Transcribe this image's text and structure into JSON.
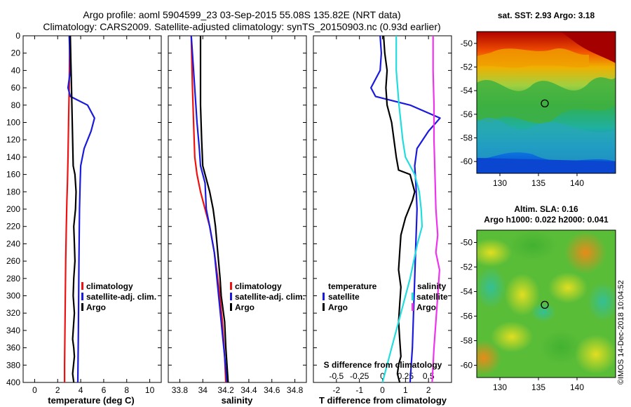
{
  "title_line1": "Argo profile: aoml 5904599_23 03-Sep-2015 55.08S 135.82E (NRT data)",
  "title_line2": "Climatology: CARS2009. Satellite-adjusted climatology: synTS_20150903.nc (0.93d earlier)",
  "stamp": "©IMOS 14-Dec-2018 10:04:52",
  "colors": {
    "red": "#ee1111",
    "blue": "#1a1add",
    "black": "#000000",
    "cyan": "#22dddd",
    "magenta": "#ee33ee"
  },
  "depth_ticks": [
    "0",
    "20",
    "40",
    "60",
    "80",
    "100",
    "120",
    "140",
    "160",
    "180",
    "200",
    "220",
    "240",
    "260",
    "280",
    "300",
    "320",
    "340",
    "360",
    "380",
    "400"
  ],
  "chart_data": [
    {
      "type": "line",
      "name": "temperature-panel",
      "xlabel": "temperature (deg C)",
      "xlim": [
        -1,
        11
      ],
      "ylim": [
        400,
        0
      ],
      "xticks": [
        "0",
        "2",
        "4",
        "6",
        "8",
        "10"
      ],
      "legend": [
        "climatology",
        "satellite-adj. clim.",
        "Argo"
      ],
      "series": [
        {
          "name": "climatology",
          "color": "red",
          "x": [
            3.05,
            3.0,
            2.95,
            2.9,
            2.85,
            2.8,
            2.75,
            2.7,
            2.65,
            2.6,
            2.6
          ],
          "depth": [
            0,
            60,
            100,
            140,
            170,
            190,
            220,
            260,
            320,
            380,
            400
          ]
        },
        {
          "name": "satellite-adj. clim.",
          "color": "blue",
          "x": [
            3.0,
            3.05,
            3.1,
            2.9,
            3.1,
            4.6,
            5.2,
            4.9,
            4.3,
            4.0,
            3.95,
            3.9,
            3.85,
            3.8,
            3.75
          ],
          "depth": [
            0,
            20,
            40,
            60,
            70,
            80,
            95,
            110,
            130,
            150,
            170,
            200,
            260,
            340,
            400
          ]
        },
        {
          "name": "Argo",
          "color": "black",
          "x": [
            3.1,
            3.15,
            3.2,
            3.25,
            3.3,
            3.35,
            3.5,
            3.6,
            3.55,
            3.4,
            3.45,
            3.5,
            3.4,
            3.35,
            3.45,
            3.35,
            3.3,
            3.4,
            3.45,
            3.3,
            3.4
          ],
          "depth": [
            0,
            30,
            60,
            90,
            120,
            150,
            160,
            180,
            200,
            220,
            240,
            260,
            280,
            300,
            320,
            340,
            350,
            360,
            370,
            390,
            400
          ]
        }
      ]
    },
    {
      "type": "line",
      "name": "salinity-panel",
      "xlabel": "salinity",
      "xlim": [
        33.7,
        34.9
      ],
      "ylim": [
        400,
        0
      ],
      "xticks": [
        "33.8",
        "34",
        "34.2",
        "34.4",
        "34.6",
        "34.8"
      ],
      "legend": [
        "climatology",
        "satellite-adj. clim.",
        "Argo"
      ],
      "series": [
        {
          "name": "climatology",
          "color": "red",
          "x": [
            33.9,
            33.91,
            33.92,
            33.93,
            33.95,
            33.98,
            34.02,
            34.06,
            34.1,
            34.14,
            34.17,
            34.19,
            34.2
          ],
          "depth": [
            0,
            60,
            100,
            140,
            160,
            180,
            200,
            220,
            250,
            290,
            330,
            370,
            400
          ]
        },
        {
          "name": "satellite-adj. clim.",
          "color": "blue",
          "x": [
            33.9,
            33.92,
            33.95,
            33.97,
            33.98,
            34.02,
            34.03,
            34.06,
            34.1,
            34.13,
            34.16,
            34.19,
            34.21
          ],
          "depth": [
            0,
            40,
            100,
            130,
            150,
            170,
            200,
            220,
            250,
            290,
            330,
            370,
            400
          ]
        },
        {
          "name": "Argo",
          "color": "black",
          "x": [
            33.98,
            33.98,
            33.98,
            33.99,
            34.0,
            34.04,
            34.06,
            34.09,
            34.11,
            34.13,
            34.15,
            34.16,
            34.19,
            34.2,
            34.22
          ],
          "depth": [
            0,
            40,
            80,
            120,
            150,
            170,
            180,
            200,
            220,
            250,
            280,
            300,
            330,
            360,
            400
          ]
        }
      ]
    },
    {
      "type": "line",
      "name": "difference-panel",
      "xlabel": "T difference from climatology",
      "x2label": "S difference from climatology",
      "xlim": [
        -3,
        3
      ],
      "ylim": [
        400,
        0
      ],
      "xticks": [
        "-2",
        "-1",
        "0",
        "1",
        "2"
      ],
      "x2ticks": [
        "-0.5",
        "-0.25",
        "0",
        "0.25",
        "0.5"
      ],
      "legend_left_title": "temperature",
      "legend_right_title": "salinity",
      "legend_left": [
        "satellite",
        "Argo"
      ],
      "legend_right": [
        "satellite",
        "Argo"
      ],
      "series": [
        {
          "name": "T satellite",
          "color": "blue",
          "x": [
            -0.1,
            -0.05,
            -0.1,
            -0.5,
            -0.3,
            1.2,
            2.5,
            2.0,
            1.5,
            1.4,
            1.45,
            1.5,
            1.45,
            1.4,
            1.35,
            1.3,
            1.2
          ],
          "depth": [
            0,
            20,
            40,
            60,
            70,
            80,
            95,
            110,
            130,
            150,
            170,
            200,
            240,
            280,
            320,
            360,
            400
          ]
        },
        {
          "name": "T Argo",
          "color": "black",
          "x": [
            0.05,
            0.1,
            0.2,
            0.15,
            0.2,
            0.4,
            0.5,
            0.6,
            0.7,
            1.2,
            1.4,
            1.3,
            1.0,
            0.8,
            0.75,
            0.7,
            0.8,
            0.75,
            0.7,
            0.75,
            0.8,
            0.7,
            0.65,
            0.75
          ],
          "depth": [
            0,
            20,
            40,
            60,
            80,
            100,
            120,
            140,
            155,
            160,
            180,
            190,
            210,
            230,
            250,
            270,
            290,
            310,
            330,
            350,
            370,
            380,
            390,
            400
          ]
        },
        {
          "name": "S satellite",
          "color": "cyan",
          "x": [
            0.15,
            0.15,
            0.18,
            0.2,
            0.22,
            0.25,
            0.35,
            0.4,
            0.42,
            0.43,
            0.38,
            0.3,
            0.2,
            0.1,
            0.05,
            0.0
          ],
          "depth": [
            0,
            40,
            80,
            100,
            120,
            140,
            160,
            180,
            200,
            220,
            240,
            280,
            320,
            360,
            380,
            400
          ]
        },
        {
          "name": "S Argo",
          "color": "magenta",
          "x": [
            0.55,
            0.55,
            0.56,
            0.56,
            0.57,
            0.58,
            0.6,
            0.58,
            0.62,
            0.6,
            0.58,
            0.56,
            0.55,
            0.54
          ],
          "depth": [
            0,
            40,
            80,
            120,
            160,
            200,
            230,
            250,
            270,
            300,
            330,
            360,
            380,
            400
          ]
        }
      ]
    },
    {
      "type": "heatmap",
      "name": "sst-map",
      "title": "sat. SST: 2.93 Argo: 3.18",
      "xlim": [
        127,
        145
      ],
      "ylim": [
        -61,
        -49
      ],
      "xticks": [
        "130",
        "135",
        "140"
      ],
      "yticks": [
        "-50",
        "-52",
        "-54",
        "-56",
        "-58",
        "-60"
      ],
      "marker": {
        "lon": 135.82,
        "lat": -55.08
      }
    },
    {
      "type": "heatmap",
      "name": "sla-map",
      "title_line1": "Altim. SLA: 0.16",
      "title_line2": "Argo h1000: 0.022 h2000: 0.041",
      "xlim": [
        127,
        145
      ],
      "ylim": [
        -61,
        -49
      ],
      "xticks": [
        "130",
        "135",
        "140"
      ],
      "yticks": [
        "-50",
        "-52",
        "-54",
        "-56",
        "-58",
        "-60"
      ],
      "marker": {
        "lon": 135.82,
        "lat": -55.08
      }
    }
  ]
}
